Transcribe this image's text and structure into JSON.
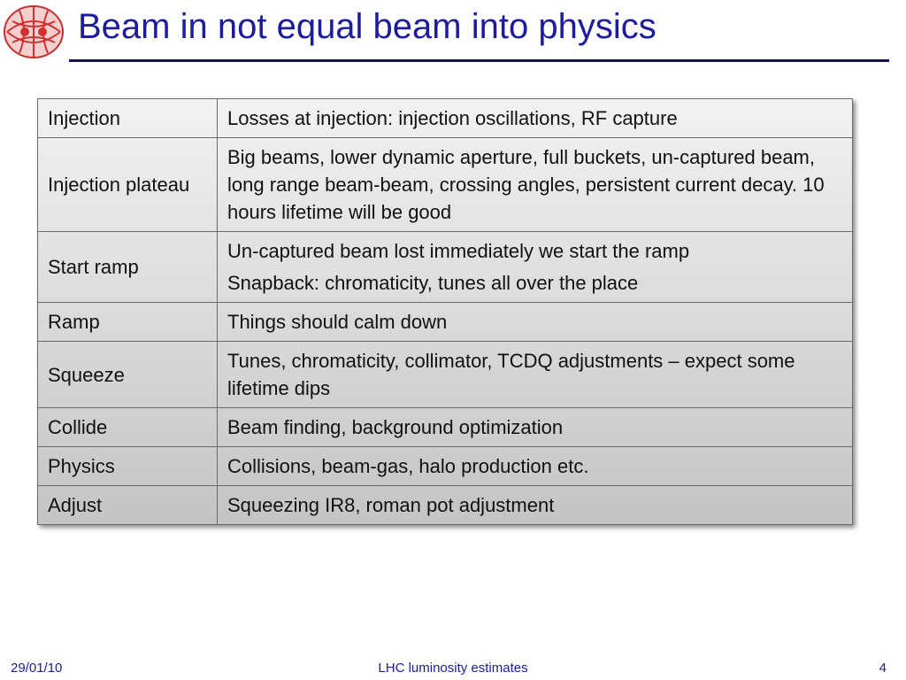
{
  "header": {
    "title": "Beam in not equal beam into physics"
  },
  "table": {
    "rows": [
      {
        "stage": "Injection",
        "notes": [
          "Losses at injection: injection oscillations, RF capture"
        ]
      },
      {
        "stage": "Injection plateau",
        "notes": [
          "Big beams, lower dynamic aperture, full buckets, un-captured beam, long range beam-beam, crossing angles, persistent current decay. 10 hours lifetime will be good"
        ]
      },
      {
        "stage": "Start ramp",
        "notes": [
          "Un-captured beam lost immediately we start the ramp",
          "Snapback: chromaticity, tunes all over the place"
        ]
      },
      {
        "stage": "Ramp",
        "notes": [
          "Things should calm down"
        ]
      },
      {
        "stage": "Squeeze",
        "notes": [
          "Tunes, chromaticity, collimator, TCDQ adjustments – expect some lifetime dips"
        ]
      },
      {
        "stage": "Collide",
        "notes": [
          "Beam finding, background optimization"
        ]
      },
      {
        "stage": "Physics",
        "notes": [
          "Collisions, beam-gas, halo production etc."
        ]
      },
      {
        "stage": "Adjust",
        "notes": [
          "Squeezing IR8, roman pot adjustment"
        ]
      }
    ]
  },
  "footer": {
    "date": "29/01/10",
    "center": "LHC luminosity estimates",
    "page": "4"
  }
}
